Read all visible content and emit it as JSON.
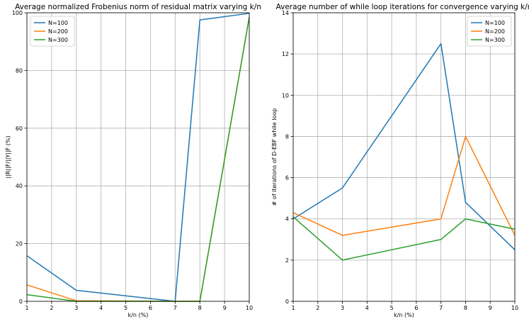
{
  "chart_data": [
    {
      "type": "line",
      "title": "Average normalized Frobenius norm of residual matrix varying k/n",
      "xlabel": "k/n (%)",
      "ylabel": "||R||F/||Y||F (%)",
      "x": [
        1,
        3,
        7,
        8,
        10
      ],
      "xlim": [
        1,
        10
      ],
      "ylim": [
        0,
        100
      ],
      "xticks": [
        1,
        2,
        3,
        4,
        5,
        6,
        7,
        8,
        9,
        10
      ],
      "yticks": [
        0,
        20,
        40,
        60,
        80,
        100
      ],
      "grid": true,
      "legend": "top-left",
      "series": [
        {
          "name": "N=100",
          "color": "#1f77b4",
          "values": [
            15.8,
            3.8,
            0.0,
            97.5,
            99.8
          ]
        },
        {
          "name": "N=200",
          "color": "#ff7f0e",
          "values": [
            5.7,
            0.2,
            0.0,
            0.0,
            98.5
          ]
        },
        {
          "name": "N=300",
          "color": "#2ca02c",
          "values": [
            2.3,
            0.0,
            0.0,
            0.0,
            98.5
          ]
        }
      ]
    },
    {
      "type": "line",
      "title": "Average number of while loop iterations for convergence varying k/n",
      "xlabel": "k/n (%)",
      "ylabel": "# of iterations of D-EBF while loop",
      "x": [
        1,
        3,
        7,
        8,
        10
      ],
      "xlim": [
        1,
        10
      ],
      "ylim": [
        0,
        14
      ],
      "xticks": [
        1,
        2,
        3,
        4,
        5,
        6,
        7,
        8,
        9,
        10
      ],
      "yticks": [
        0,
        2,
        4,
        6,
        8,
        10,
        12,
        14
      ],
      "grid": true,
      "legend": "top-right",
      "series": [
        {
          "name": "N=100",
          "color": "#1f77b4",
          "values": [
            4.0,
            5.5,
            12.5,
            4.8,
            2.5
          ]
        },
        {
          "name": "N=200",
          "color": "#ff7f0e",
          "values": [
            4.3,
            3.2,
            4.0,
            8.0,
            3.2
          ]
        },
        {
          "name": "N=300",
          "color": "#2ca02c",
          "values": [
            4.1,
            2.0,
            3.0,
            4.0,
            3.5
          ]
        }
      ]
    }
  ]
}
